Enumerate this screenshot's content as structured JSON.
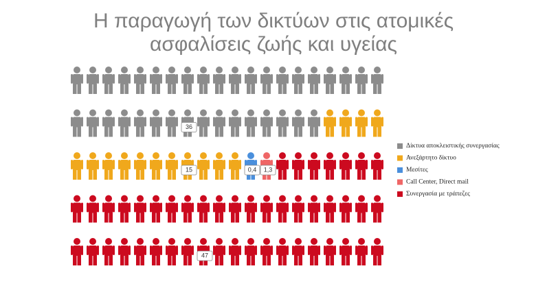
{
  "chart_data": {
    "type": "pictograph",
    "title": "Η παραγωγή των δικτύων στις ατομικές ασφαλίσεις ζωής και υγείας",
    "series": [
      {
        "name": "Δίκτυα αποκλειστικής συνεργασίας",
        "color": "#8c8c8c",
        "values": [
          36
        ]
      },
      {
        "name": "Ανεξάρτητο δίκτυο",
        "color": "#f0a81c",
        "values": [
          15
        ]
      },
      {
        "name": "Μεσίτες",
        "color": "#4a8fdc",
        "values": [
          0.4
        ],
        "value_labels": [
          "0,4"
        ]
      },
      {
        "name": "Call Center, Direct mail",
        "color": "#ef6666",
        "values": [
          1.3
        ],
        "value_labels": [
          "1,3"
        ]
      },
      {
        "name": "Συνεργασία με τράπεζες",
        "color": "#cc0a1f",
        "values": [
          47
        ]
      }
    ],
    "legend": "right"
  }
}
